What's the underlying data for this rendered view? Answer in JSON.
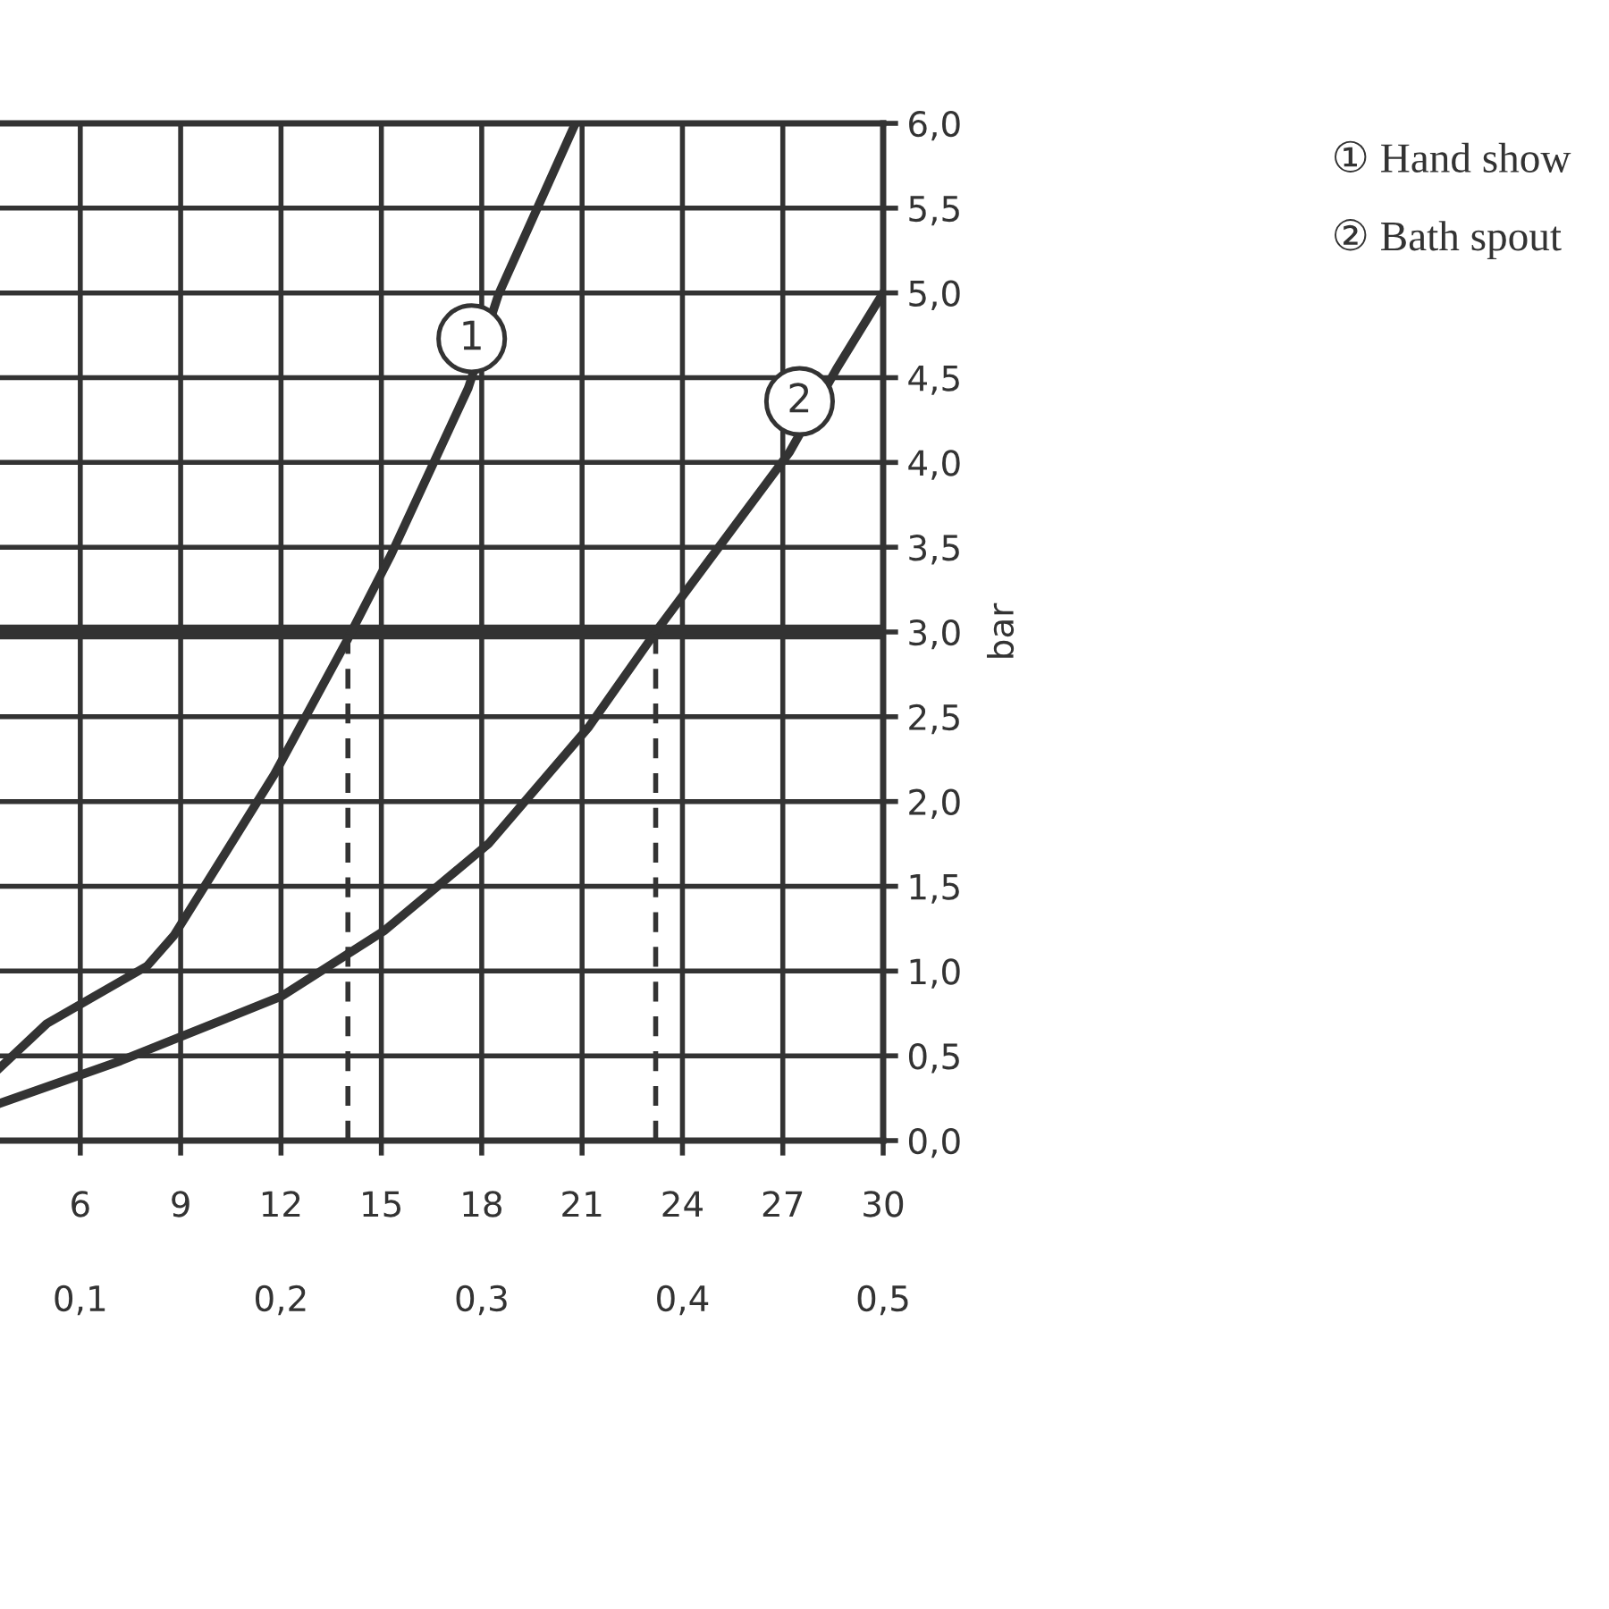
{
  "chart_data": {
    "type": "line",
    "ylabel": "bar",
    "xlim": [
      3.6,
      30
    ],
    "xticks": [
      6,
      9,
      12,
      15,
      18,
      21,
      24,
      27,
      30
    ],
    "x2lim": [
      0.06,
      0.5
    ],
    "x2ticks": [
      {
        "value": 0.1,
        "label": "0,1"
      },
      {
        "value": 0.2,
        "label": "0,2"
      },
      {
        "value": 0.3,
        "label": "0,3"
      },
      {
        "value": 0.4,
        "label": "0,4"
      },
      {
        "value": 0.5,
        "label": "0,5"
      }
    ],
    "ylim": [
      0,
      6
    ],
    "yticks": [
      {
        "value": 0,
        "label": "0,0"
      },
      {
        "value": 0.5,
        "label": "0,5"
      },
      {
        "value": 1,
        "label": "1,0"
      },
      {
        "value": 1.5,
        "label": "1,5"
      },
      {
        "value": 2,
        "label": "2,0"
      },
      {
        "value": 2.5,
        "label": "2,5"
      },
      {
        "value": 3,
        "label": "3,0"
      },
      {
        "value": 3.5,
        "label": "3,5"
      },
      {
        "value": 4,
        "label": "4,0"
      },
      {
        "value": 4.5,
        "label": "4,5"
      },
      {
        "value": 5,
        "label": "5,0"
      },
      {
        "value": 5.5,
        "label": "5,5"
      },
      {
        "value": 6,
        "label": "6,0"
      }
    ],
    "grid": true,
    "legend": "top right",
    "marker": "none",
    "series": [
      {
        "name": "① Hand show",
        "color": "#333333",
        "x": [
          3.6,
          5.0,
          8.0,
          8.8,
          11.8,
          14.0,
          15.3,
          17.6,
          18.5,
          20.8
        ],
        "values": [
          0.43,
          0.69,
          1.03,
          1.21,
          2.16,
          2.96,
          3.46,
          4.44,
          4.99,
          6.0
        ]
      },
      {
        "name": "② Bath spout",
        "color": "#333333",
        "x": [
          3.6,
          7.2,
          12.0,
          15.1,
          18.2,
          21.2,
          23.2,
          27.2,
          28.6,
          30
        ],
        "values": [
          0.22,
          0.47,
          0.85,
          1.24,
          1.75,
          2.44,
          3.0,
          4.06,
          4.55,
          5.0
        ]
      },
      {
        "color": "#333333",
        "line_style": "dashed",
        "x": [
          14.0,
          14.0
        ],
        "values": [
          0,
          3
        ]
      },
      {
        "color": "#333333",
        "line_style": "dashed",
        "x": [
          23.2,
          23.2
        ],
        "values": [
          0,
          3
        ]
      }
    ],
    "ref_lines": [
      {
        "axis": "y",
        "value": 3,
        "color": "#333333"
      }
    ],
    "annotations": [
      {
        "text": "1",
        "x": 17.7,
        "y": 4.73
      },
      {
        "text": "2",
        "x": 27.5,
        "y": 4.36
      }
    ]
  }
}
